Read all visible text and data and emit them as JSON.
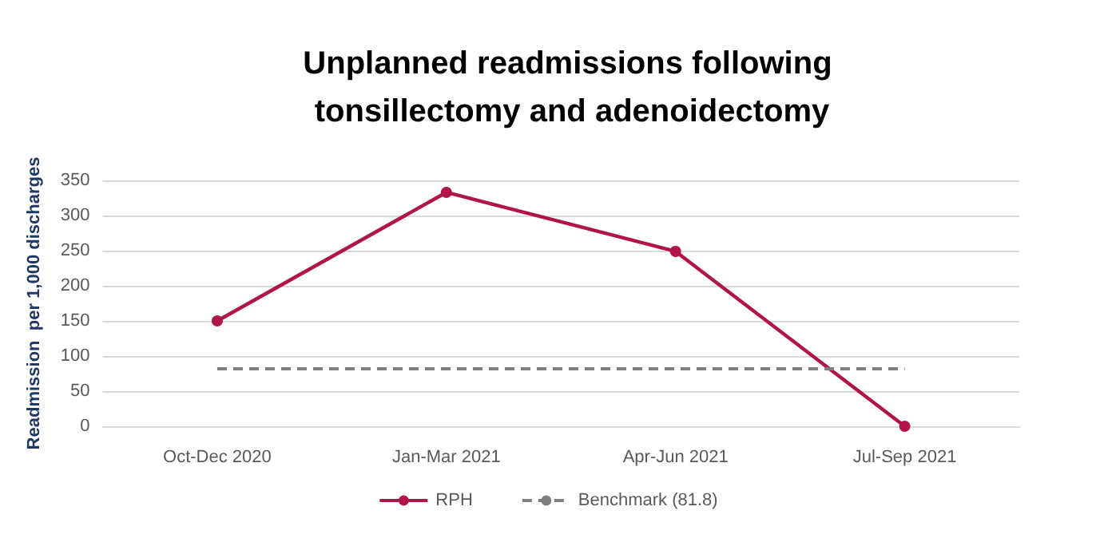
{
  "chart_data": {
    "type": "line",
    "title": "Unplanned readmissions following tonsillectomy and adenoidectomy",
    "ylabel": "Readmission  per 1,000 discharges",
    "categories": [
      "Oct-Dec 2020",
      "Jan-Mar 2021",
      "Apr-Jun 2021",
      "Jul-Sep 2021"
    ],
    "series": [
      {
        "name": "RPH",
        "color": "#b0144a",
        "values": [
          150,
          333,
          249,
          0
        ],
        "marker": "circle",
        "line_style": "solid"
      },
      {
        "name": "Benchmark (81.8)",
        "color": "#7f7f7f",
        "values": [
          81.8,
          81.8,
          81.8,
          81.8
        ],
        "marker": "none",
        "line_style": "dashed"
      }
    ],
    "ylim": [
      0,
      350
    ],
    "yticks": [
      0,
      50,
      100,
      150,
      200,
      250,
      300,
      350
    ],
    "grid": "y",
    "legend": "bottom"
  }
}
